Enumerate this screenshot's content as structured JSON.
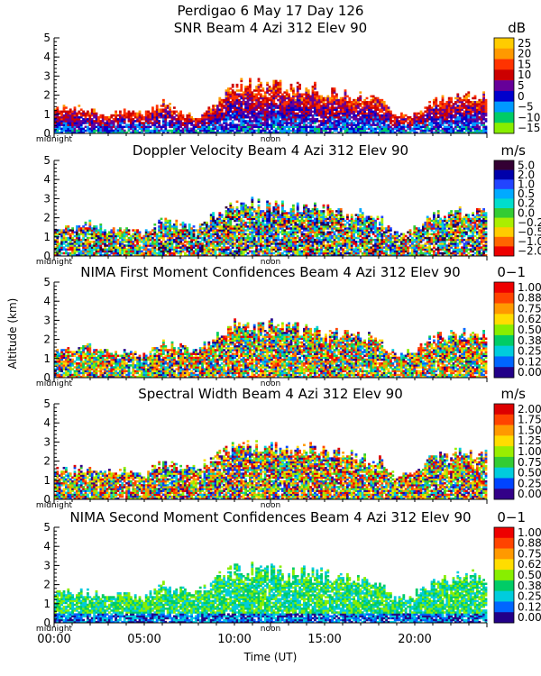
{
  "figure": {
    "title_line1": "Perdigao    6 May 17 Day 126",
    "ylabel": "Altitude (km)",
    "xlabel": "Time (UT)"
  },
  "x_axis": {
    "range": [
      0,
      24
    ],
    "units": "hours UT",
    "ticks": [
      0,
      5,
      10,
      15,
      20
    ],
    "tick_labels": [
      "00:00",
      "05:00",
      "10:00",
      "15:00",
      "20:00"
    ],
    "marker_labels": {
      "midnight": "midnight",
      "noon": "noon"
    }
  },
  "chart_data": [
    {
      "type": "heatmap",
      "title": "SNR Beam 4 Azi 312 Elev 90",
      "units": "dB",
      "ylim": [
        0,
        5
      ],
      "yticks": [
        "0",
        "1",
        "2",
        "3",
        "4",
        "5"
      ],
      "colorbar_labels": [
        "25",
        "20",
        "15",
        "10",
        "5",
        "0",
        "−5",
        "−10",
        "−15"
      ],
      "colors": [
        "#ffcc00",
        "#ff9900",
        "#ff3300",
        "#cc0000",
        "#660099",
        "#0000cc",
        "#0099ff",
        "#00cc66",
        "#88ee00"
      ],
      "echo_tops_km": [
        [
          0,
          1.2
        ],
        [
          1,
          1.4
        ],
        [
          2,
          1.2
        ],
        [
          3,
          0.9
        ],
        [
          4,
          1.3
        ],
        [
          5,
          1.0
        ],
        [
          6,
          1.6
        ],
        [
          7,
          1.1
        ],
        [
          8,
          0.8
        ],
        [
          9,
          1.8
        ],
        [
          10,
          2.6
        ],
        [
          11,
          2.7
        ],
        [
          12,
          2.6
        ],
        [
          13,
          2.5
        ],
        [
          14,
          2.5
        ],
        [
          15,
          2.3
        ],
        [
          16,
          2.1
        ],
        [
          17,
          2.0
        ],
        [
          18,
          1.8
        ],
        [
          19,
          0.9
        ],
        [
          20,
          1.0
        ],
        [
          21,
          1.7
        ],
        [
          22,
          1.9
        ],
        [
          23,
          2.0
        ],
        [
          24,
          2.0
        ]
      ]
    },
    {
      "type": "heatmap",
      "title": "Doppler Velocity Beam 4 Azi 312 Elev 90",
      "units": "m/s",
      "ylim": [
        0,
        5
      ],
      "yticks": [
        "0",
        "1",
        "2",
        "3",
        "4",
        "5"
      ],
      "colorbar_labels": [
        "5.0",
        "2.0",
        "1.0",
        "0.5",
        "0.2",
        "0.0",
        "−0.2",
        "−0.5",
        "−1.0",
        "−2.0"
      ],
      "colors": [
        "#330033",
        "#0000aa",
        "#2244ff",
        "#00aaff",
        "#00ddcc",
        "#33cc33",
        "#aaee00",
        "#ffcc00",
        "#ff6600",
        "#ee0000"
      ],
      "echo_tops_km": [
        [
          0,
          1.5
        ],
        [
          1,
          1.6
        ],
        [
          2,
          1.7
        ],
        [
          3,
          1.3
        ],
        [
          4,
          1.4
        ],
        [
          5,
          1.2
        ],
        [
          6,
          1.9
        ],
        [
          7,
          1.6
        ],
        [
          8,
          1.5
        ],
        [
          9,
          2.2
        ],
        [
          10,
          2.7
        ],
        [
          11,
          2.8
        ],
        [
          12,
          2.7
        ],
        [
          13,
          2.6
        ],
        [
          14,
          2.6
        ],
        [
          15,
          2.5
        ],
        [
          16,
          2.3
        ],
        [
          17,
          2.2
        ],
        [
          18,
          2.0
        ],
        [
          19,
          1.1
        ],
        [
          20,
          1.4
        ],
        [
          21,
          2.1
        ],
        [
          22,
          2.3
        ],
        [
          23,
          2.4
        ],
        [
          24,
          2.4
        ]
      ]
    },
    {
      "type": "heatmap",
      "title": "NIMA First Moment Confidences Beam 4 Azi 312 Elev 90",
      "units": "0−1",
      "ylim": [
        0,
        5
      ],
      "yticks": [
        "0",
        "1",
        "2",
        "3",
        "4",
        "5"
      ],
      "colorbar_labels": [
        "1.00",
        "0.88",
        "0.75",
        "0.62",
        "0.50",
        "0.38",
        "0.25",
        "0.12",
        "0.00"
      ],
      "colors": [
        "#ee0000",
        "#ff4400",
        "#ff9900",
        "#ffdd00",
        "#88ee00",
        "#00cc66",
        "#00ccdd",
        "#0066ff",
        "#220088"
      ],
      "echo_tops_km": [
        [
          0,
          1.5
        ],
        [
          1,
          1.6
        ],
        [
          2,
          1.7
        ],
        [
          3,
          1.3
        ],
        [
          4,
          1.4
        ],
        [
          5,
          1.2
        ],
        [
          6,
          1.9
        ],
        [
          7,
          1.6
        ],
        [
          8,
          1.5
        ],
        [
          9,
          2.2
        ],
        [
          10,
          2.8
        ],
        [
          11,
          2.8
        ],
        [
          12,
          2.8
        ],
        [
          13,
          2.7
        ],
        [
          14,
          2.6
        ],
        [
          15,
          2.5
        ],
        [
          16,
          2.3
        ],
        [
          17,
          2.2
        ],
        [
          18,
          2.0
        ],
        [
          19,
          1.1
        ],
        [
          20,
          1.5
        ],
        [
          21,
          2.1
        ],
        [
          22,
          2.3
        ],
        [
          23,
          2.4
        ],
        [
          24,
          2.4
        ]
      ]
    },
    {
      "type": "heatmap",
      "title": "Spectral Width Beam 4 Azi 312 Elev 90",
      "units": "m/s",
      "ylim": [
        0,
        5
      ],
      "yticks": [
        "0",
        "1",
        "2",
        "3",
        "4",
        "5"
      ],
      "colorbar_labels": [
        "2.00",
        "1.75",
        "1.50",
        "1.25",
        "1.00",
        "0.75",
        "0.50",
        "0.25",
        "0.00"
      ],
      "colors": [
        "#dd0000",
        "#ff4400",
        "#ff9900",
        "#ffdd00",
        "#99ee00",
        "#33cc33",
        "#00ccdd",
        "#0044ff",
        "#330088"
      ],
      "echo_tops_km": [
        [
          0,
          1.6
        ],
        [
          1,
          1.6
        ],
        [
          2,
          1.7
        ],
        [
          3,
          1.4
        ],
        [
          4,
          1.5
        ],
        [
          5,
          1.3
        ],
        [
          6,
          2.0
        ],
        [
          7,
          1.7
        ],
        [
          8,
          1.6
        ],
        [
          9,
          2.3
        ],
        [
          10,
          2.9
        ],
        [
          11,
          2.9
        ],
        [
          12,
          2.8
        ],
        [
          13,
          2.7
        ],
        [
          14,
          2.7
        ],
        [
          15,
          2.6
        ],
        [
          16,
          2.4
        ],
        [
          17,
          2.3
        ],
        [
          18,
          2.1
        ],
        [
          19,
          1.2
        ],
        [
          20,
          1.5
        ],
        [
          21,
          2.2
        ],
        [
          22,
          2.4
        ],
        [
          23,
          2.5
        ],
        [
          24,
          2.5
        ]
      ]
    },
    {
      "type": "heatmap",
      "title": "NIMA Second Moment Confidences Beam 4 Azi 312 Elev 90",
      "units": "0−1",
      "ylim": [
        0,
        5
      ],
      "yticks": [
        "0",
        "1",
        "2",
        "3",
        "4",
        "5"
      ],
      "colorbar_labels": [
        "1.00",
        "0.88",
        "0.75",
        "0.62",
        "0.50",
        "0.38",
        "0.25",
        "0.12",
        "0.00"
      ],
      "colors": [
        "#ee0000",
        "#ff4400",
        "#ff9900",
        "#ffdd00",
        "#88ee00",
        "#00cc66",
        "#00ccdd",
        "#0066ff",
        "#220088"
      ],
      "echo_tops_km": [
        [
          0,
          1.6
        ],
        [
          1,
          1.6
        ],
        [
          2,
          1.7
        ],
        [
          3,
          1.4
        ],
        [
          4,
          1.5
        ],
        [
          5,
          1.3
        ],
        [
          6,
          2.0
        ],
        [
          7,
          1.7
        ],
        [
          8,
          1.6
        ],
        [
          9,
          2.3
        ],
        [
          10,
          2.9
        ],
        [
          11,
          2.9
        ],
        [
          12,
          2.8
        ],
        [
          13,
          2.7
        ],
        [
          14,
          2.7
        ],
        [
          15,
          2.6
        ],
        [
          16,
          2.4
        ],
        [
          17,
          2.3
        ],
        [
          18,
          2.1
        ],
        [
          19,
          1.2
        ],
        [
          20,
          1.5
        ],
        [
          21,
          2.2
        ],
        [
          22,
          2.4
        ],
        [
          23,
          2.5
        ],
        [
          24,
          2.5
        ]
      ]
    }
  ]
}
